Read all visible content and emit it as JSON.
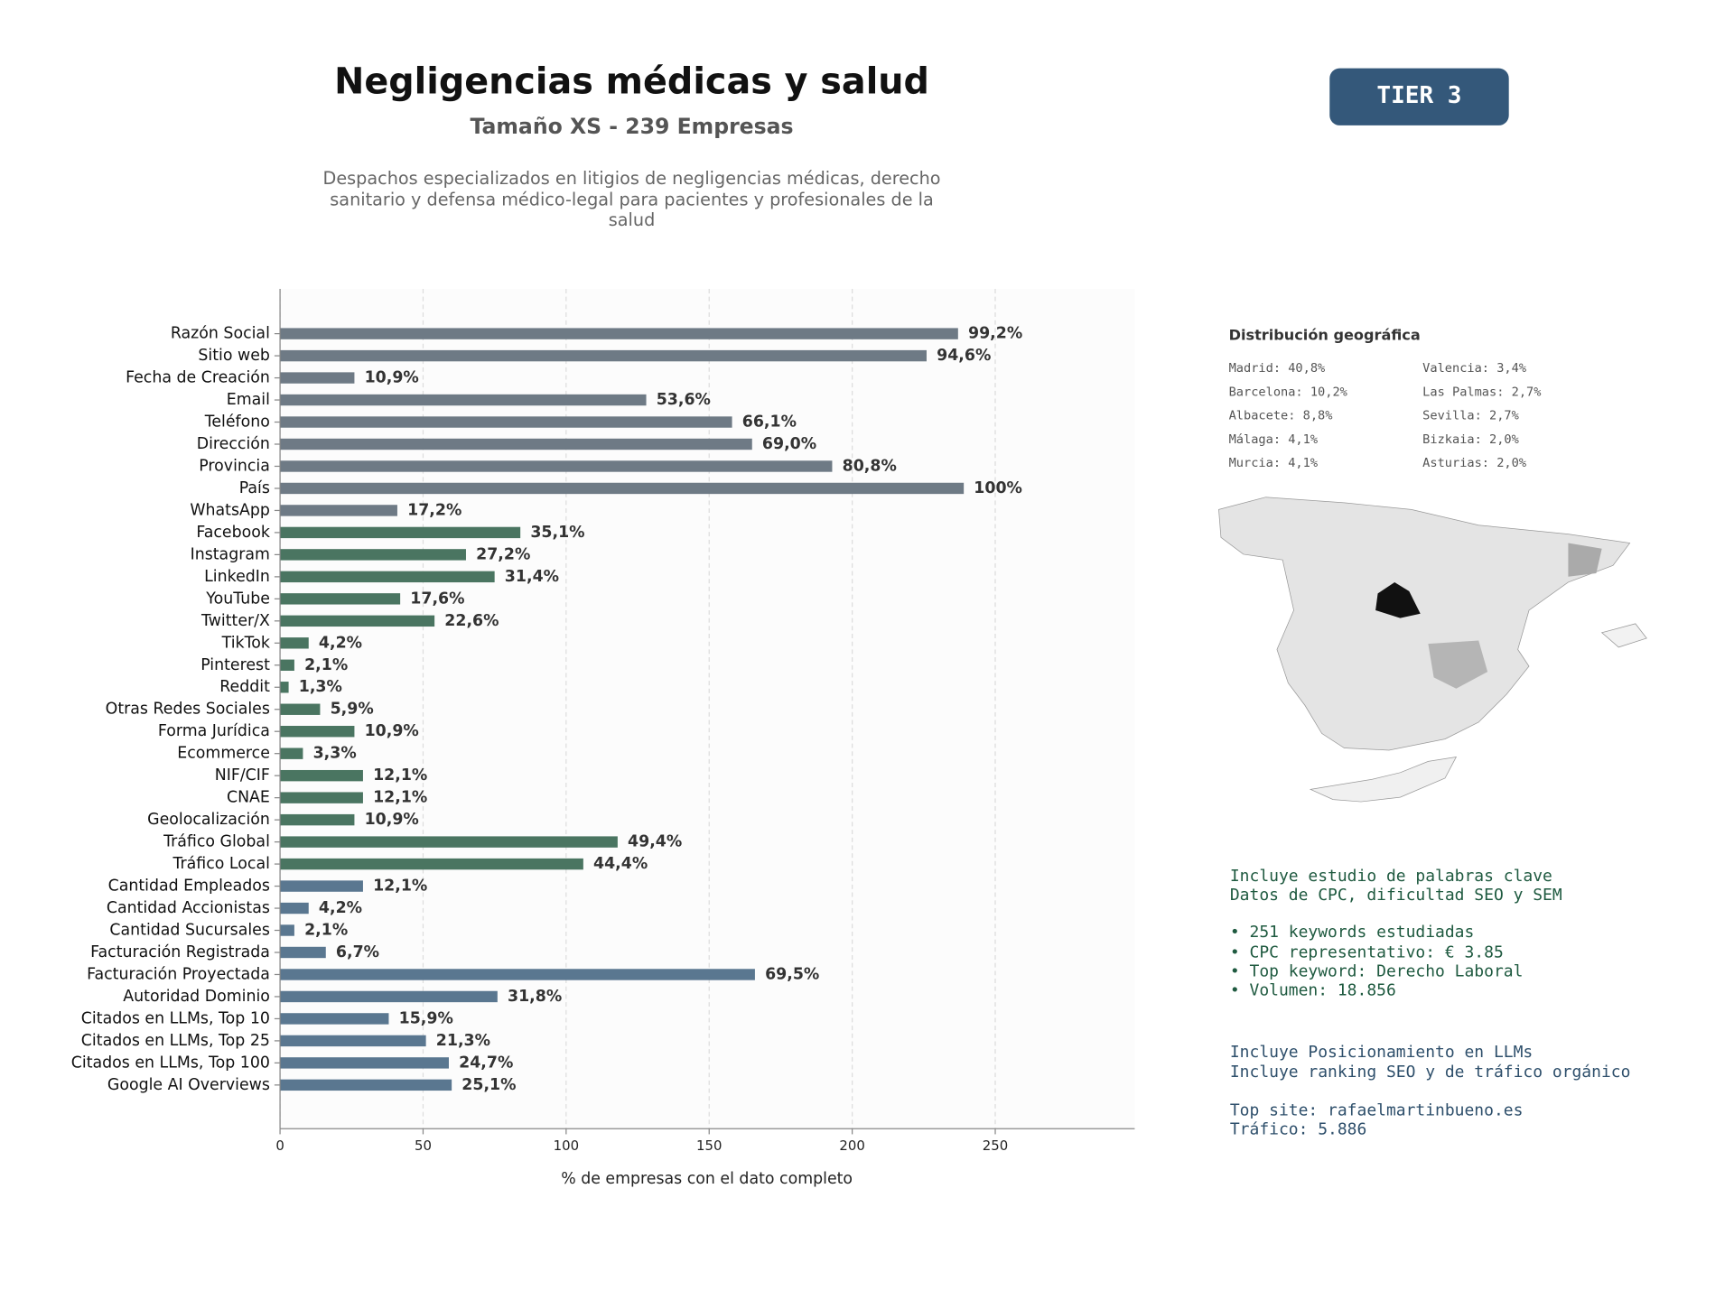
{
  "chart_data": {
    "type": "barh",
    "title": "Negligencias médicas y salud",
    "subtitle": "Tamaño XS - 239 Empresas",
    "description": [
      "Despachos especializados en litigios de negligencias médicas, derecho",
      "sanitario y defensa médico-legal para pacientes y profesionales de la",
      "salud"
    ],
    "xlabel": "% de empresas con el dato completo",
    "categories": [
      "Razón Social",
      "Sitio web",
      "Fecha de Creación",
      "Email",
      "Teléfono",
      "Dirección",
      "Provincia",
      "País",
      "WhatsApp",
      "Facebook",
      "Instagram",
      "LinkedIn",
      "YouTube",
      "Twitter/X",
      "TikTok",
      "Pinterest",
      "Reddit",
      "Otras Redes Sociales",
      "Forma Jurídica",
      "Ecommerce",
      "NIF/CIF",
      "CNAE",
      "Geolocalización",
      "Tráfico Global",
      "Tráfico Local",
      "Cantidad Empleados",
      "Cantidad Accionistas",
      "Cantidad Sucursales",
      "Facturación Registrada",
      "Facturación Proyectada",
      "Autoridad Dominio",
      "Citados en LLMs, Top 10",
      "Citados en LLMs, Top 25",
      "Citados en LLMs, Top 100",
      "Google AI Overviews"
    ],
    "values": [
      237,
      226,
      26,
      128,
      158,
      165,
      193,
      239,
      41,
      84,
      65,
      75,
      42,
      54,
      10,
      5,
      3,
      14,
      26,
      8,
      29,
      29,
      26,
      118,
      106,
      29,
      10,
      5,
      16,
      166,
      76,
      38,
      51,
      59,
      60
    ],
    "value_labels": [
      "99,2%",
      "94,6%",
      "10,9%",
      "53,6%",
      "66,1%",
      "69,0%",
      "80,8%",
      "100%",
      "17,2%",
      "35,1%",
      "27,2%",
      "31,4%",
      "17,6%",
      "22,6%",
      "4,2%",
      "2,1%",
      "1,3%",
      "5,9%",
      "10,9%",
      "3,3%",
      "12,1%",
      "12,1%",
      "10,9%",
      "49,4%",
      "44,4%",
      "12,1%",
      "4,2%",
      "2,1%",
      "6,7%",
      "69,5%",
      "31,8%",
      "15,9%",
      "21,3%",
      "24,7%",
      "25,1%"
    ],
    "colors": [
      "#6e7a85",
      "#6e7a85",
      "#6e7a85",
      "#6e7a85",
      "#6e7a85",
      "#6e7a85",
      "#6e7a85",
      "#6e7a85",
      "#6e7a85",
      "#4a7561",
      "#4a7561",
      "#4a7561",
      "#4a7561",
      "#4a7561",
      "#4a7561",
      "#4a7561",
      "#4a7561",
      "#4a7561",
      "#4a7561",
      "#4a7561",
      "#4a7561",
      "#4a7561",
      "#4a7561",
      "#4a7561",
      "#4a7561",
      "#5a7790",
      "#5a7790",
      "#5a7790",
      "#5a7790",
      "#5a7790",
      "#5a7790",
      "#5a7790",
      "#5a7790",
      "#5a7790",
      "#5a7790"
    ],
    "xlim": [
      0,
      298.75
    ],
    "xticks": [
      0,
      50,
      100,
      150,
      200,
      250
    ],
    "grid": true
  },
  "tier_badge": "TIER 3",
  "geo": {
    "title": "Distribución geográfica",
    "items": [
      "Madrid: 40,8%",
      "Barcelona: 10,2%",
      "Albacete: 8,8%",
      "Málaga: 4,1%",
      "Murcia: 4,1%",
      "Valencia: 3,4%",
      "Las Palmas: 2,7%",
      "Sevilla: 2,7%",
      "Bizkaia: 2,0%",
      "Asturias: 2,0%"
    ]
  },
  "keywords": [
    "Incluye estudio de palabras clave",
    "Datos de CPC, dificultad SEO y SEM",
    "• 251 keywords estudiadas",
    "• CPC representativo: € 3.85",
    "• Top keyword: Derecho Laboral",
    "• Volumen: 18.856"
  ],
  "llm": [
    "Incluye Posicionamiento en LLMs",
    "Incluye ranking SEO y de tráfico orgánico",
    "Top site: rafaelmartinbueno.es",
    "Tráfico: 5.886"
  ]
}
